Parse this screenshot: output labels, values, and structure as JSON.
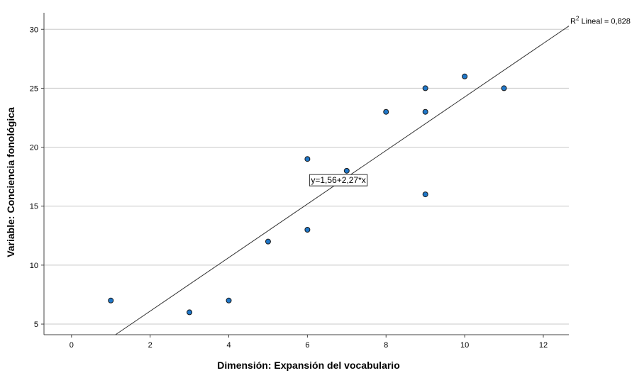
{
  "chart_data": {
    "type": "scatter",
    "xlabel": "Dimensión: Expansión del vocabulario",
    "ylabel": "Variable: Conciencia fonológica",
    "xlim": [
      -0.7,
      12.65
    ],
    "ylim": [
      4.1,
      31.4
    ],
    "xticks": [
      0,
      2,
      4,
      6,
      8,
      10,
      12
    ],
    "yticks": [
      5,
      10,
      15,
      20,
      25,
      30
    ],
    "grid": "horizontal",
    "points": [
      {
        "x": 1,
        "y": 7
      },
      {
        "x": 3,
        "y": 6
      },
      {
        "x": 4,
        "y": 7
      },
      {
        "x": 5,
        "y": 12
      },
      {
        "x": 6,
        "y": 19
      },
      {
        "x": 6,
        "y": 13
      },
      {
        "x": 7,
        "y": 18
      },
      {
        "x": 8,
        "y": 23
      },
      {
        "x": 9,
        "y": 25
      },
      {
        "x": 9,
        "y": 23
      },
      {
        "x": 9,
        "y": 16
      },
      {
        "x": 10,
        "y": 26
      },
      {
        "x": 11,
        "y": 25
      }
    ],
    "fit_line": {
      "intercept": 1.56,
      "slope": 2.27,
      "equation_label": "y=1,56+2,27*x",
      "r2_prefix": "R",
      "r2_sup": "2",
      "r2_text": " Lineal = 0,828"
    },
    "colors": {
      "point_fill": "#1f77c9",
      "point_stroke": "#1a1a1a",
      "grid": "#c8c8c8",
      "axis": "#444444",
      "fit_line": "#333333"
    }
  }
}
